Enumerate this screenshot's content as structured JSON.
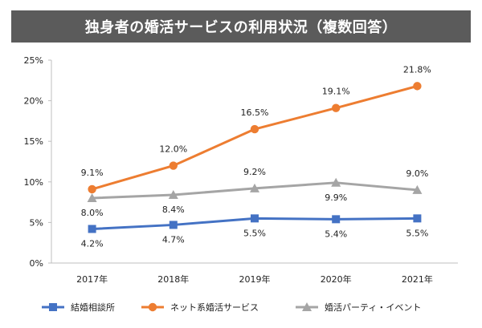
{
  "title": "独身者の婚活サービスの利用状況（複数回答）",
  "chart_data": {
    "type": "line",
    "title": "独身者の婚活サービスの利用状況（複数回答）",
    "categories": [
      "2017年",
      "2018年",
      "2019年",
      "2020年",
      "2021年"
    ],
    "ylim": [
      0,
      25
    ],
    "yticks": [
      0,
      5,
      10,
      15,
      20,
      25
    ],
    "ytick_labels": [
      "0%",
      "5%",
      "10%",
      "15%",
      "20%",
      "25%"
    ],
    "grid": false,
    "legend_position": "bottom",
    "series": [
      {
        "name": "結婚相談所",
        "color": "#4472c4",
        "marker": "square",
        "values": [
          4.2,
          4.7,
          5.5,
          5.4,
          5.5
        ],
        "labels": [
          "4.2%",
          "4.7%",
          "5.5%",
          "5.4%",
          "5.5%"
        ]
      },
      {
        "name": "ネット系婚活サービス",
        "color": "#ed7d31",
        "marker": "circle",
        "values": [
          9.1,
          12.0,
          16.5,
          19.1,
          21.8
        ],
        "labels": [
          "9.1%",
          "12.0%",
          "16.5%",
          "19.1%",
          "21.8%"
        ]
      },
      {
        "name": "婚活パーティ・イベント",
        "color": "#a5a5a5",
        "marker": "triangle",
        "values": [
          8.0,
          8.4,
          9.2,
          9.9,
          9.0
        ],
        "labels": [
          "8.0%",
          "8.4%",
          "9.2%",
          "9.9%",
          "9.0%"
        ]
      }
    ]
  }
}
